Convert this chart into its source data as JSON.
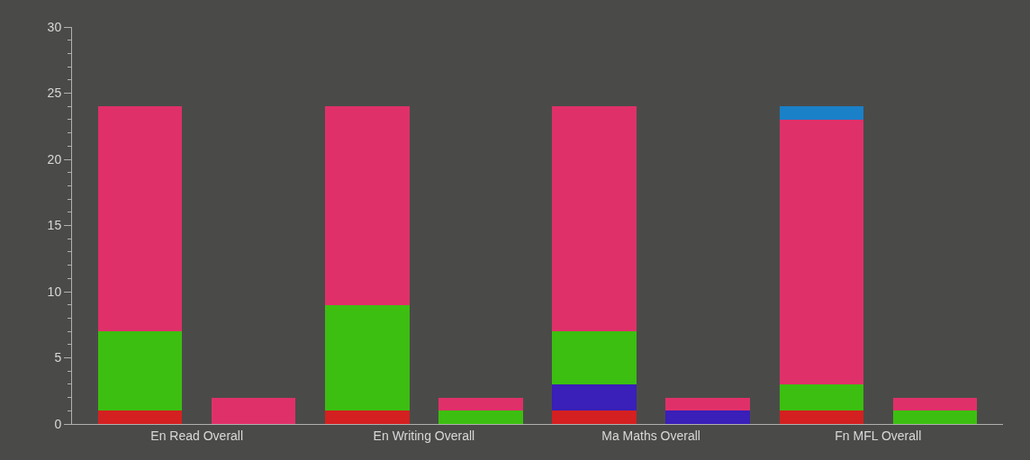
{
  "chart_data": {
    "type": "bar",
    "stacked": true,
    "categories": [
      "En Read Overall",
      null,
      "En Writing Overall",
      null,
      "Ma Maths Overall",
      null,
      "Fn MFL Overall",
      null
    ],
    "series": [
      {
        "color": "#d42020",
        "values": [
          1,
          null,
          1,
          null,
          1,
          null,
          1,
          null
        ]
      },
      {
        "color": "#3a1fb8",
        "values": [
          null,
          null,
          null,
          null,
          2,
          1,
          null,
          null
        ]
      },
      {
        "color": "#3cbf10",
        "values": [
          6,
          null,
          8,
          1,
          4,
          null,
          2,
          1
        ]
      },
      {
        "color": "#e0306a",
        "values": [
          17,
          2,
          15,
          1,
          17,
          1,
          20,
          1
        ]
      },
      {
        "color": "#1a80c8",
        "values": [
          null,
          null,
          null,
          null,
          null,
          null,
          1,
          null
        ]
      }
    ],
    "ylim": [
      0,
      30
    ],
    "yticks": [
      0,
      5,
      10,
      15,
      20,
      25,
      30
    ],
    "grid": false
  }
}
